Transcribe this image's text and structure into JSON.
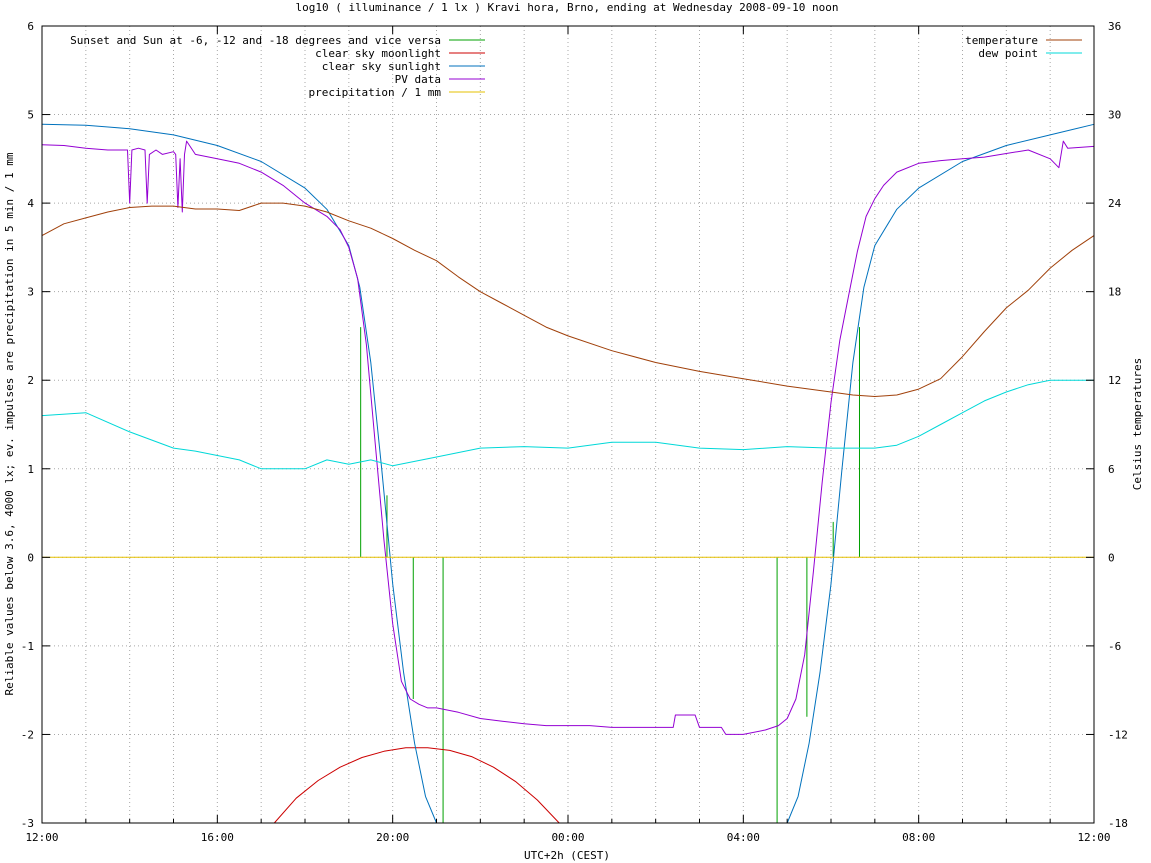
{
  "chart_data": {
    "type": "line",
    "title": "log10 ( illuminance / 1 lx ) Kravi hora, Brno, ending at Wednesday 2008-09-10 noon",
    "xlabel": "UTC+2h (CEST)",
    "ylabel": "Reliable values below 3.6, 4000 lx; ev. impulses are precipitation in 5 min / 1 mm",
    "y2label": "Celsius temperatures",
    "x_unit": "hours since 12:00 CEST",
    "xlim": [
      0,
      24
    ],
    "ylim": [
      -3,
      6
    ],
    "y2lim": [
      -18,
      36
    ],
    "grid": true,
    "x_ticks": [
      {
        "v": 0,
        "label": "12:00"
      },
      {
        "v": 4,
        "label": "16:00"
      },
      {
        "v": 8,
        "label": "20:00"
      },
      {
        "v": 12,
        "label": "00:00"
      },
      {
        "v": 16,
        "label": "04:00"
      },
      {
        "v": 20,
        "label": "08:00"
      },
      {
        "v": 24,
        "label": "12:00"
      }
    ],
    "y_ticks": [
      {
        "v": -3,
        "label": "-3"
      },
      {
        "v": -2,
        "label": "-2"
      },
      {
        "v": -1,
        "label": "-1"
      },
      {
        "v": 0,
        "label": "0"
      },
      {
        "v": 1,
        "label": "1"
      },
      {
        "v": 2,
        "label": "2"
      },
      {
        "v": 3,
        "label": "3"
      },
      {
        "v": 4,
        "label": "4"
      },
      {
        "v": 5,
        "label": "5"
      },
      {
        "v": 6,
        "label": "6"
      }
    ],
    "y2_ticks": [
      {
        "v": -18,
        "label": "-18"
      },
      {
        "v": -12,
        "label": "-12"
      },
      {
        "v": -6,
        "label": "-6"
      },
      {
        "v": 0,
        "label": "0"
      },
      {
        "v": 6,
        "label": "6"
      },
      {
        "v": 12,
        "label": "12"
      },
      {
        "v": 18,
        "label": "18"
      },
      {
        "v": 24,
        "label": "24"
      },
      {
        "v": 30,
        "label": "30"
      },
      {
        "v": 36,
        "label": "36"
      }
    ],
    "legend_left": [
      {
        "name": "Sunset and Sun at -6, -12 and -18 degrees and vice versa",
        "color": "#00a000"
      },
      {
        "name": "clear sky moonlight",
        "color": "#cc0000"
      },
      {
        "name": "clear sky sunlight",
        "color": "#0072bd"
      },
      {
        "name": "PV data",
        "color": "#9400d3"
      },
      {
        "name": "precipitation / 1 mm",
        "color": "#e6c000"
      }
    ],
    "legend_right": [
      {
        "name": "temperature",
        "color": "#a0400a"
      },
      {
        "name": "dew point",
        "color": "#00d8d8"
      }
    ],
    "series": [
      {
        "name": "Sunset and Sun at -6, -12 and -18 degrees and vice versa",
        "color": "#00a000",
        "kind": "impulse",
        "x": [
          7.27,
          7.87,
          8.47,
          9.15,
          16.77,
          17.45,
          18.05,
          18.65
        ],
        "y": [
          2.6,
          0.7,
          -1.6,
          -3.0,
          -3.0,
          -1.8,
          0.4,
          2.6
        ]
      },
      {
        "name": "clear sky moonlight",
        "color": "#cc0000",
        "axis": "y1",
        "x": [
          5.3,
          5.8,
          6.3,
          6.8,
          7.3,
          7.8,
          8.3,
          8.8,
          9.3,
          9.8,
          10.3,
          10.8,
          11.3,
          11.8
        ],
        "y": [
          -3.0,
          -2.72,
          -2.52,
          -2.37,
          -2.26,
          -2.19,
          -2.15,
          -2.15,
          -2.18,
          -2.25,
          -2.37,
          -2.53,
          -2.74,
          -3.0
        ]
      },
      {
        "name": "clear sky sunlight",
        "color": "#0072bd",
        "axis": "y1",
        "x": [
          0,
          1,
          2,
          3,
          4,
          5,
          6,
          6.5,
          7,
          7.25,
          7.5,
          7.75,
          8,
          8.25,
          8.5,
          8.75,
          9,
          9.1,
          16.9,
          17.0,
          17.25,
          17.5,
          17.75,
          18,
          18.25,
          18.5,
          18.75,
          19,
          19.5,
          20,
          21,
          22,
          23,
          24
        ],
        "y": [
          4.89,
          4.88,
          4.84,
          4.77,
          4.65,
          4.47,
          4.17,
          3.93,
          3.52,
          3.05,
          2.2,
          1.0,
          -0.3,
          -1.3,
          -2.1,
          -2.7,
          -3.0,
          -3.0,
          -3.0,
          -3.0,
          -2.7,
          -2.1,
          -1.3,
          -0.3,
          1.0,
          2.2,
          3.05,
          3.52,
          3.93,
          4.17,
          4.47,
          4.65,
          4.77,
          4.89
        ]
      },
      {
        "name": "PV data",
        "color": "#9400d3",
        "axis": "y1",
        "x": [
          0,
          0.5,
          1,
          1.5,
          1.95,
          2.0,
          2.05,
          2.2,
          2.35,
          2.4,
          2.45,
          2.6,
          2.75,
          3.0,
          3.05,
          3.1,
          3.15,
          3.2,
          3.25,
          3.3,
          3.5,
          4,
          4.5,
          5,
          5.5,
          6,
          6.5,
          6.8,
          7,
          7.2,
          7.4,
          7.6,
          7.8,
          8,
          8.2,
          8.4,
          8.6,
          8.8,
          9,
          9.5,
          10,
          10.5,
          11,
          11.5,
          12,
          12.5,
          13,
          13.5,
          14,
          14.4,
          14.45,
          14.9,
          15.0,
          15.5,
          15.6,
          16,
          16.5,
          16.8,
          17.0,
          17.2,
          17.4,
          17.6,
          17.8,
          18.0,
          18.2,
          18.4,
          18.6,
          18.8,
          19.0,
          19.2,
          19.5,
          20,
          20.5,
          21,
          21.5,
          22,
          22.5,
          23,
          23.2,
          23.3,
          23.4,
          24
        ],
        "y": [
          4.66,
          4.65,
          4.62,
          4.6,
          4.6,
          4.0,
          4.6,
          4.62,
          4.6,
          4.0,
          4.55,
          4.6,
          4.55,
          4.58,
          4.55,
          3.95,
          4.5,
          3.9,
          4.55,
          4.7,
          4.55,
          4.5,
          4.45,
          4.35,
          4.2,
          4.0,
          3.85,
          3.7,
          3.5,
          3.15,
          2.4,
          1.3,
          0.2,
          -0.75,
          -1.4,
          -1.6,
          -1.66,
          -1.7,
          -1.7,
          -1.75,
          -1.82,
          -1.85,
          -1.88,
          -1.9,
          -1.9,
          -1.9,
          -1.92,
          -1.92,
          -1.92,
          -1.92,
          -1.78,
          -1.78,
          -1.92,
          -1.92,
          -2.0,
          -2.0,
          -1.95,
          -1.9,
          -1.82,
          -1.6,
          -1.1,
          -0.15,
          0.85,
          1.75,
          2.45,
          2.95,
          3.45,
          3.85,
          4.05,
          4.2,
          4.35,
          4.45,
          4.48,
          4.5,
          4.52,
          4.56,
          4.6,
          4.5,
          4.4,
          4.7,
          4.62,
          4.64
        ]
      },
      {
        "name": "precipitation / 1 mm",
        "color": "#e6c000",
        "axis": "y1",
        "x": [
          0,
          24
        ],
        "y": [
          0,
          0
        ]
      },
      {
        "name": "temperature",
        "color": "#a0400a",
        "axis": "y2",
        "x": [
          0,
          0.5,
          1,
          1.5,
          2,
          2.5,
          3,
          3.5,
          4,
          4.5,
          5,
          5.5,
          6,
          6.5,
          7,
          7.5,
          8,
          8.5,
          9,
          9.5,
          10,
          10.5,
          11,
          11.5,
          12,
          13,
          14,
          15,
          16,
          17,
          18,
          18.5,
          19,
          19.5,
          20,
          20.5,
          21,
          21.5,
          22,
          22.5,
          23,
          23.5,
          24
        ],
        "y": [
          21.8,
          22.6,
          23.0,
          23.4,
          23.7,
          23.8,
          23.8,
          23.6,
          23.6,
          23.5,
          24.0,
          24.0,
          23.8,
          23.4,
          22.8,
          22.3,
          21.6,
          20.8,
          20.1,
          19.0,
          18.0,
          17.2,
          16.4,
          15.6,
          15.0,
          14.0,
          13.2,
          12.6,
          12.1,
          11.6,
          11.2,
          11.0,
          10.9,
          11.0,
          11.4,
          12.1,
          13.6,
          15.3,
          16.9,
          18.1,
          19.6,
          20.8,
          21.8
        ]
      },
      {
        "name": "dew point",
        "color": "#00d8d8",
        "axis": "y2",
        "x": [
          0,
          1,
          2,
          3,
          3.5,
          4,
          4.5,
          5,
          5.5,
          6,
          6.5,
          7,
          7.5,
          8,
          8.5,
          9,
          10,
          11,
          12,
          13,
          14,
          15,
          16,
          17,
          18,
          19,
          19.5,
          20,
          20.5,
          21,
          21.5,
          22,
          22.5,
          23,
          23.5,
          24
        ],
        "y": [
          9.6,
          9.8,
          8.5,
          7.4,
          7.2,
          6.9,
          6.6,
          6.0,
          6.0,
          6.0,
          6.6,
          6.3,
          6.6,
          6.2,
          6.5,
          6.8,
          7.4,
          7.5,
          7.4,
          7.8,
          7.8,
          7.4,
          7.3,
          7.5,
          7.4,
          7.4,
          7.6,
          8.2,
          9.0,
          9.8,
          10.6,
          11.2,
          11.7,
          12.0,
          12.0,
          12.0
        ]
      }
    ]
  }
}
